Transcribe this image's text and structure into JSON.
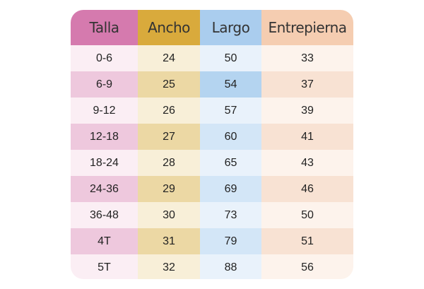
{
  "table": {
    "headers": [
      "Talla",
      "Ancho",
      "Largo",
      "Entrepierna"
    ],
    "rows": [
      [
        "0-6",
        24,
        50,
        33
      ],
      [
        "6-9",
        25,
        54,
        37
      ],
      [
        "9-12",
        26,
        57,
        39
      ],
      [
        "12-18",
        27,
        60,
        41
      ],
      [
        "18-24",
        28,
        65,
        43
      ],
      [
        "24-36",
        29,
        69,
        46
      ],
      [
        "36-48",
        30,
        73,
        50
      ],
      [
        "4T",
        31,
        79,
        51
      ],
      [
        "5T",
        32,
        88,
        56
      ]
    ]
  }
}
